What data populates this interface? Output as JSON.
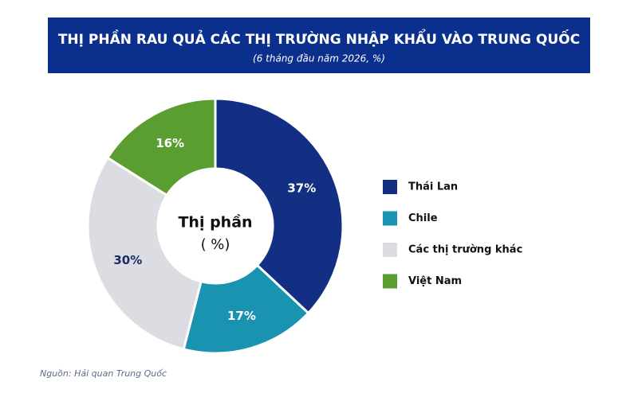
{
  "chart_data": {
    "type": "donut",
    "title": "THỊ PHẦN RAU QUẢ CÁC THỊ TRƯỜNG NHẬP KHẨU VÀO TRUNG QUỐC",
    "subtitle": "(6 tháng đầu năm 2026, %)",
    "center_label": [
      "Thị phần",
      "( %)"
    ],
    "categories": [
      "Thái Lan",
      "Chile",
      "Các thị trường khác",
      "Việt Nam"
    ],
    "values": [
      37,
      17,
      30,
      16
    ],
    "value_labels": [
      "37%",
      "17%",
      "30%",
      "16%"
    ],
    "colors": [
      "#132f84",
      "#1a93b0",
      "#dcdde2",
      "#5a9e32"
    ],
    "source": "Nguồn: Hải quan Trung Quốc"
  }
}
